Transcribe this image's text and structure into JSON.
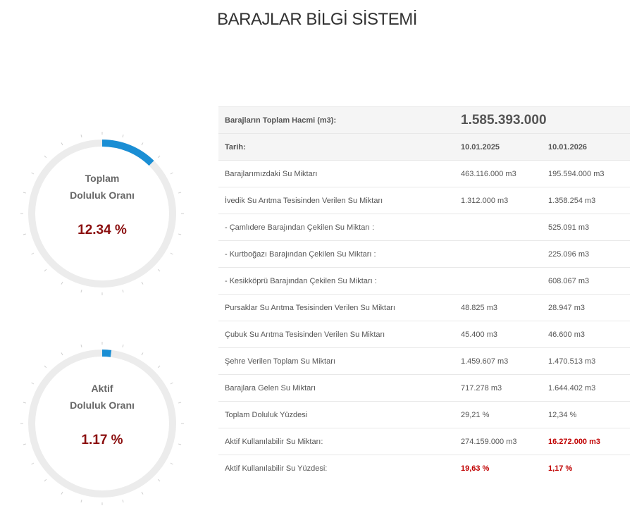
{
  "page": {
    "title": "BARAJLAR BİLGİ SİSTEMİ"
  },
  "gauges": [
    {
      "label1": "Toplam",
      "label2": "Doluluk Oranı",
      "value_text": "12.34 %",
      "fraction": 0.1234
    },
    {
      "label1": "Aktif",
      "label2": "Doluluk Oranı",
      "value_text": "1.17 %",
      "fraction": 0.0117
    }
  ],
  "colors": {
    "gauge_fill": "#1a8ed4",
    "gauge_track": "#ececec",
    "value_red": "#8b0f0f",
    "highlight_red": "#c00000"
  },
  "table": {
    "volume_label": "Barajların Toplam Hacmi (m3):",
    "volume_value": "1.585.393.000",
    "date_label": "Tarih:",
    "date1": "10.01.2025",
    "date2": "10.01.2026",
    "rows": [
      {
        "label": "Barajlarımızdaki Su Miktarı",
        "v1": "463.116.000 m3",
        "v2": "195.594.000 m3"
      },
      {
        "label": "İvedik Su Arıtma Tesisinden Verilen Su Miktarı",
        "v1": "1.312.000 m3",
        "v2": "1.358.254 m3"
      },
      {
        "label": "- Çamlıdere Barajından Çekilen Su Miktarı :",
        "v1": "",
        "v2": "525.091 m3"
      },
      {
        "label": "- Kurtboğazı Barajından Çekilen Su Miktarı :",
        "v1": "",
        "v2": "225.096 m3"
      },
      {
        "label": "- Kesikköprü Barajından Çekilen Su Miktarı :",
        "v1": "",
        "v2": "608.067 m3"
      },
      {
        "label": "Pursaklar Su Arıtma Tesisinden Verilen Su Miktarı",
        "v1": "48.825 m3",
        "v2": "28.947 m3"
      },
      {
        "label": "Çubuk Su Arıtma Tesisinden Verilen Su Miktarı",
        "v1": "45.400 m3",
        "v2": "46.600 m3"
      },
      {
        "label": "Şehre Verilen Toplam Su Miktarı",
        "v1": "1.459.607 m3",
        "v2": "1.470.513 m3"
      },
      {
        "label": "Barajlara Gelen Su Miktarı",
        "v1": "717.278 m3",
        "v2": "1.644.402 m3"
      },
      {
        "label": "Toplam Doluluk Yüzdesi",
        "v1": "29,21 %",
        "v2": "12,34 %"
      },
      {
        "label": "Aktif Kullanılabilir Su Miktarı:",
        "v1": "274.159.000 m3",
        "v2": "16.272.000 m3"
      },
      {
        "label": "Aktif Kullanılabilir Su Yüzdesi:",
        "v1": "19,63 %",
        "v2": "1,17 %"
      }
    ]
  }
}
